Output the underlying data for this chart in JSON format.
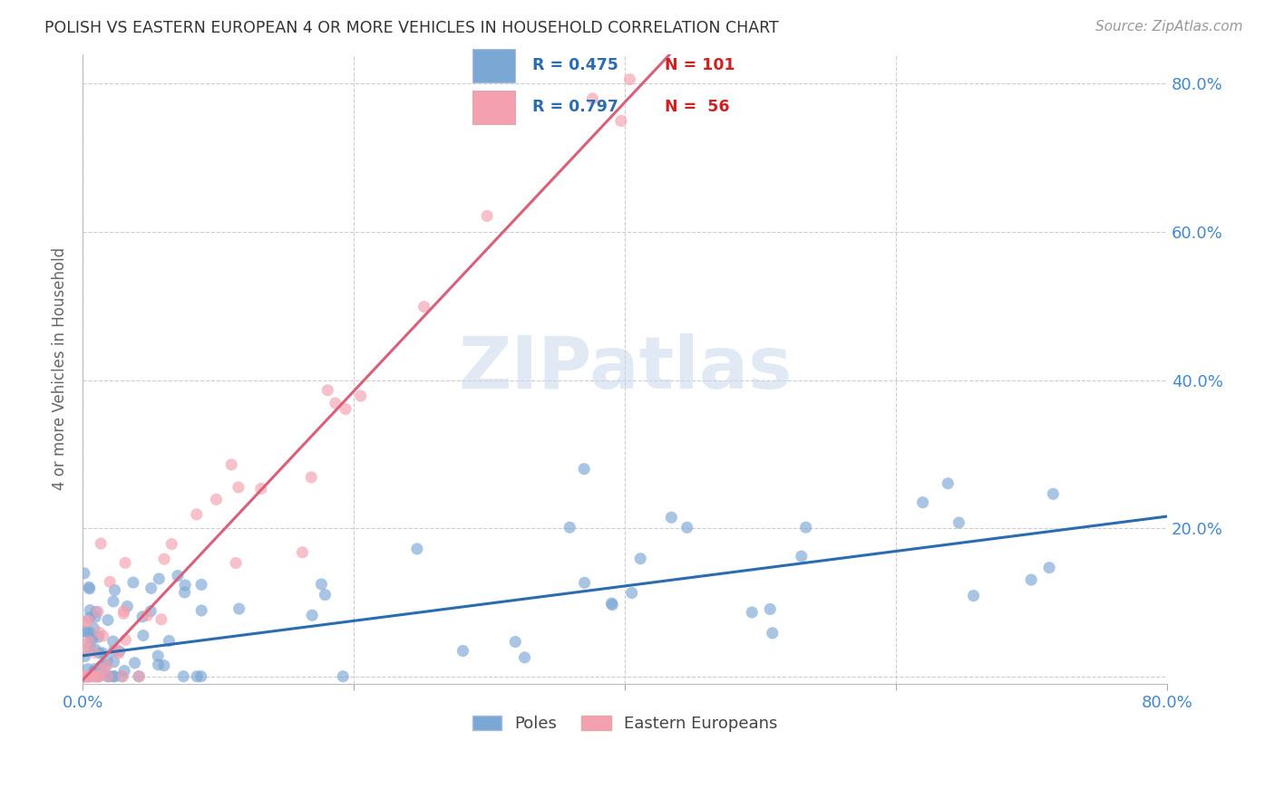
{
  "title": "POLISH VS EASTERN EUROPEAN 4 OR MORE VEHICLES IN HOUSEHOLD CORRELATION CHART",
  "source": "Source: ZipAtlas.com",
  "ylabel": "4 or more Vehicles in Household",
  "xlim": [
    0.0,
    0.8
  ],
  "ylim": [
    -0.01,
    0.84
  ],
  "xticks": [
    0.0,
    0.2,
    0.4,
    0.6,
    0.8
  ],
  "yticks": [
    0.0,
    0.2,
    0.4,
    0.6,
    0.8
  ],
  "x_tick_labels_show": [
    "0.0%",
    "",
    "",
    "",
    "80.0%"
  ],
  "y_tick_labels_right": [
    "",
    "20.0%",
    "40.0%",
    "60.0%",
    "80.0%"
  ],
  "blue_scatter_color": "#7BA7D4",
  "pink_scatter_color": "#F4A0B0",
  "blue_line_color": "#2B6CB0",
  "pink_line_color": "#D9607A",
  "blue_line_slope": 0.235,
  "blue_line_intercept": 0.028,
  "pink_line_slope": 1.95,
  "pink_line_intercept": -0.005,
  "legend_blue_r": "R = 0.475",
  "legend_blue_n": "N = 101",
  "legend_pink_r": "R = 0.797",
  "legend_pink_n": "N =  56",
  "legend_r_color": "#2B6CB0",
  "legend_n_color": "#CC2222",
  "watermark": "ZIPatlas",
  "watermark_color": "#C8D8EC",
  "background_color": "#FFFFFF",
  "grid_color": "#CCCCCC",
  "tick_color": "#4488CC",
  "legend_label_poles": "Poles",
  "legend_label_east": "Eastern Europeans"
}
